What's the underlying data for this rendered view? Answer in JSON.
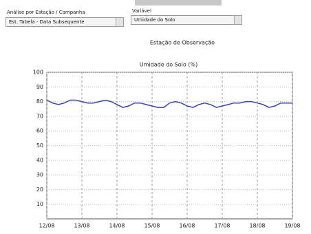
{
  "controls": {
    "station_label": "Análise por Estação / Campanha",
    "station_select": "Est. Tabela - Data Subsequente",
    "variable_label": "Variável",
    "variable_select": "Umidade do Solo"
  },
  "chart_data": {
    "type": "line",
    "subtitle": "Estação de Observação",
    "title": "Umidade do Solo (%)",
    "x": [
      0,
      4,
      8,
      12,
      16,
      20,
      24,
      28,
      32,
      36,
      40,
      44,
      48,
      52,
      56,
      60,
      64,
      68,
      72,
      76,
      80,
      84,
      88,
      92,
      96,
      100,
      104,
      108,
      112,
      116,
      120,
      124,
      128,
      132,
      136,
      140,
      144,
      148,
      152,
      156,
      160,
      164,
      168
    ],
    "values": [
      81,
      79,
      78,
      79,
      81,
      81,
      80,
      79,
      79,
      80,
      81,
      80,
      78,
      76,
      77,
      79,
      79,
      78,
      77,
      76,
      76,
      79,
      80,
      79,
      77,
      76,
      78,
      79,
      78,
      76,
      77,
      78,
      79,
      79,
      80,
      80,
      79,
      78,
      76,
      77,
      79,
      79,
      79
    ],
    "color": "#3344bb",
    "xlim": [
      0,
      168
    ],
    "xticks": [
      {
        "value": 0,
        "label": "12/08"
      },
      {
        "value": 24,
        "label": "13/08"
      },
      {
        "value": 48,
        "label": "14/08"
      },
      {
        "value": 72,
        "label": "15/08"
      },
      {
        "value": 96,
        "label": "16/08"
      },
      {
        "value": 120,
        "label": "17/08"
      },
      {
        "value": 144,
        "label": "18/08"
      },
      {
        "value": 168,
        "label": "19/08"
      }
    ],
    "ylim": [
      0,
      100
    ],
    "yticks": [
      10,
      20,
      30,
      40,
      50,
      60,
      70,
      80,
      90,
      100
    ],
    "grid": true
  }
}
